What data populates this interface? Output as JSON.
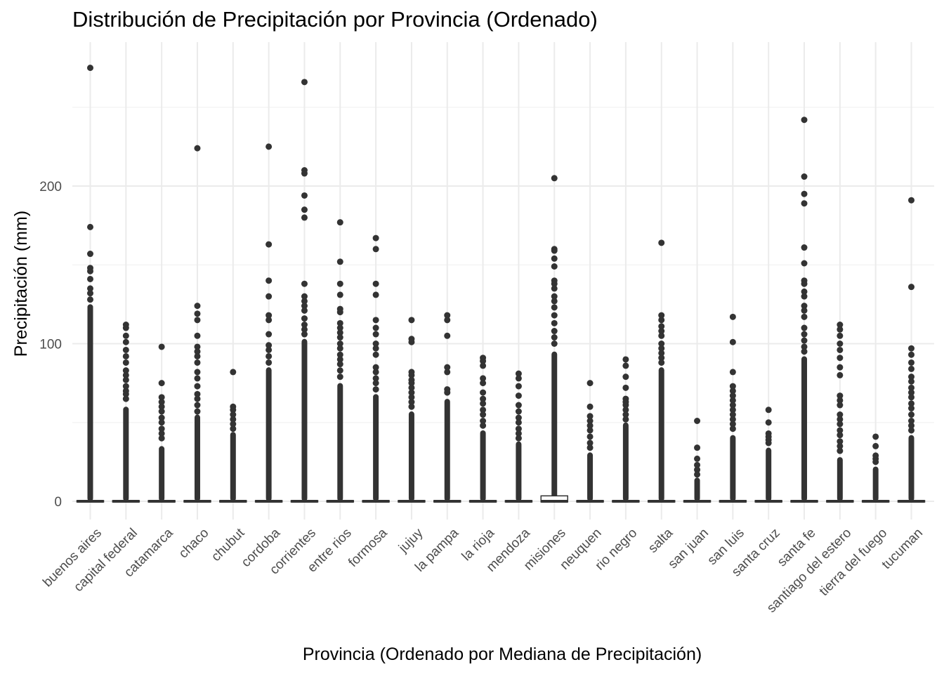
{
  "chart_data": {
    "type": "boxplot",
    "title": "Distribución de Precipitación por Provincia (Ordenado)",
    "xlabel": "Provincia (Ordenado por Mediana de Precipitación)",
    "ylabel": "Precipitación (mm)",
    "ylim": [
      -15,
      285
    ],
    "yticks": [
      0,
      100,
      200
    ],
    "grid": true,
    "legend": "none",
    "categories": [
      "buenos aires",
      "capital federal",
      "catamarca",
      "chaco",
      "chubut",
      "cordoba",
      "corrientes",
      "entre rios",
      "formosa",
      "jujuy",
      "la pampa",
      "la rioja",
      "mendoza",
      "misiones",
      "neuquen",
      "rio negro",
      "salta",
      "san juan",
      "san luis",
      "santa cruz",
      "santa fe",
      "santiago del estero",
      "tierra del fuego",
      "tucuman"
    ],
    "boxes": [
      {
        "q1": 0,
        "median": 0,
        "q3": 0,
        "dense_to": 125,
        "outliers": [
          275,
          174,
          157,
          148,
          146,
          141,
          135,
          132,
          128
        ]
      },
      {
        "q1": 0,
        "median": 0,
        "q3": 0,
        "dense_to": 60,
        "outliers": [
          112,
          110,
          105,
          101,
          96,
          92,
          88,
          83,
          80,
          77,
          73,
          70,
          68,
          65
        ]
      },
      {
        "q1": 0,
        "median": 0,
        "q3": 0,
        "dense_to": 35,
        "outliers": [
          98,
          75,
          66,
          63,
          60,
          57,
          53,
          50,
          46,
          43,
          40
        ]
      },
      {
        "q1": 0,
        "median": 0,
        "q3": 0,
        "dense_to": 55,
        "outliers": [
          224,
          124,
          119,
          115,
          105,
          98,
          95,
          92,
          88,
          82,
          78,
          73,
          68,
          65,
          61,
          57
        ]
      },
      {
        "q1": 0,
        "median": 0,
        "q3": 0,
        "dense_to": 44,
        "outliers": [
          82,
          60,
          58,
          55,
          52,
          49,
          46
        ]
      },
      {
        "q1": 0,
        "median": 0,
        "q3": 0,
        "dense_to": 85,
        "outliers": [
          225,
          163,
          140,
          130,
          118,
          115,
          106,
          99,
          96,
          92,
          88
        ]
      },
      {
        "q1": 0,
        "median": 0,
        "q3": 0,
        "dense_to": 103,
        "outliers": [
          266,
          210,
          208,
          194,
          185,
          180,
          138,
          130,
          127,
          124,
          121,
          116,
          112,
          109,
          106
        ]
      },
      {
        "q1": 0,
        "median": 0,
        "q3": 0,
        "dense_to": 75,
        "outliers": [
          177,
          152,
          138,
          131,
          122,
          120,
          113,
          110,
          107,
          104,
          100,
          97,
          93,
          90,
          87,
          83,
          79
        ]
      },
      {
        "q1": 0,
        "median": 0,
        "q3": 0,
        "dense_to": 68,
        "outliers": [
          167,
          160,
          138,
          131,
          115,
          110,
          106,
          100,
          97,
          93,
          85,
          82,
          78,
          75,
          71
        ]
      },
      {
        "q1": 0,
        "median": 0,
        "q3": 0,
        "dense_to": 57,
        "outliers": [
          115,
          103,
          101,
          82,
          80,
          77,
          75,
          72,
          69,
          66,
          63,
          60
        ]
      },
      {
        "q1": 0,
        "median": 0,
        "q3": 0,
        "dense_to": 65,
        "outliers": [
          118,
          115,
          105,
          85,
          82,
          71,
          69
        ]
      },
      {
        "q1": 0,
        "median": 0,
        "q3": 0,
        "dense_to": 45,
        "outliers": [
          91,
          89,
          86,
          78,
          75,
          69,
          65,
          62,
          58,
          55,
          51,
          48
        ]
      },
      {
        "q1": 0,
        "median": 0,
        "q3": 0,
        "dense_to": 38,
        "outliers": [
          81,
          78,
          73,
          67,
          61,
          57,
          53,
          50,
          46,
          43,
          40
        ]
      },
      {
        "q1": 0,
        "median": 0,
        "q3": 3,
        "dense_to": 95,
        "outliers": [
          205,
          160,
          159,
          154,
          149,
          140,
          138,
          135,
          130,
          127,
          123,
          118,
          113,
          108,
          104,
          100
        ]
      },
      {
        "q1": 0,
        "median": 0,
        "q3": 0,
        "dense_to": 31,
        "outliers": [
          75,
          60,
          54,
          51,
          48,
          45,
          41,
          37,
          34
        ]
      },
      {
        "q1": 0,
        "median": 0,
        "q3": 0,
        "dense_to": 50,
        "outliers": [
          90,
          86,
          79,
          72,
          65,
          63,
          61,
          58,
          55,
          52
        ]
      },
      {
        "q1": 0,
        "median": 0,
        "q3": 0,
        "dense_to": 85,
        "outliers": [
          164,
          118,
          115,
          111,
          108,
          105,
          100,
          97,
          94,
          91,
          88
        ]
      },
      {
        "q1": 0,
        "median": 0,
        "q3": 0,
        "dense_to": 15,
        "outliers": [
          51,
          34,
          27,
          23,
          20,
          17
        ]
      },
      {
        "q1": 0,
        "median": 0,
        "q3": 0,
        "dense_to": 42,
        "outliers": [
          117,
          101,
          82,
          73,
          70,
          67,
          64,
          61,
          58,
          55,
          52,
          49,
          46
        ]
      },
      {
        "q1": 0,
        "median": 0,
        "q3": 0,
        "dense_to": 34,
        "outliers": [
          58,
          50,
          43,
          41,
          39,
          37
        ]
      },
      {
        "q1": 0,
        "median": 0,
        "q3": 0,
        "dense_to": 92,
        "outliers": [
          242,
          206,
          195,
          189,
          161,
          151,
          140,
          138,
          133,
          130,
          124,
          121,
          117,
          110,
          106,
          102,
          98,
          95
        ]
      },
      {
        "q1": 0,
        "median": 0,
        "q3": 0,
        "dense_to": 28,
        "outliers": [
          112,
          109,
          105,
          100,
          96,
          91,
          85,
          80,
          67,
          64,
          61,
          55,
          52,
          49,
          45,
          42,
          38,
          35,
          32
        ]
      },
      {
        "q1": 0,
        "median": 0,
        "q3": 0,
        "dense_to": 22,
        "outliers": [
          41,
          35,
          29,
          27,
          25
        ]
      },
      {
        "q1": 0,
        "median": 0,
        "q3": 0,
        "dense_to": 42,
        "outliers": [
          191,
          136,
          97,
          93,
          88,
          84,
          79,
          76,
          72,
          69,
          66,
          62,
          59,
          55,
          51,
          48,
          45
        ]
      }
    ]
  }
}
